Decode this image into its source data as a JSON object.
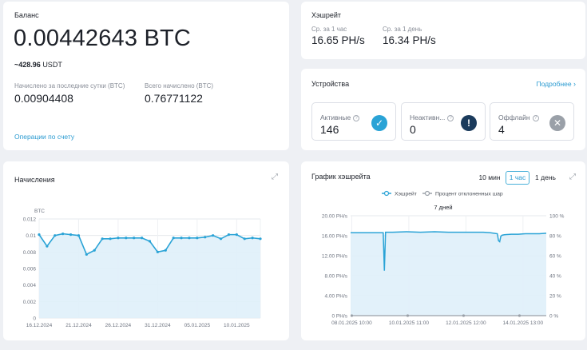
{
  "balance": {
    "title": "Баланс",
    "amount": "0.00442643 BTC",
    "usdt": "~428.96",
    "usdt_unit": "USDT",
    "daily_label": "Начислено за последние сутки (BTC)",
    "daily_value": "0.00904408",
    "total_label": "Всего начислено (BTC)",
    "total_value": "0.76771122",
    "operations_link": "Операции по счету"
  },
  "hashrate": {
    "title": "Хэшрейт",
    "hour_label": "Ср. за 1 час",
    "hour_value": "16.65 PH/s",
    "day_label": "Ср. за 1 день",
    "day_value": "16.34 PH/s"
  },
  "devices": {
    "title": "Устройства",
    "more_link": "Подробнее",
    "active_label": "Активные",
    "active_value": "146",
    "inactive_label": "Неактивн...",
    "inactive_value": "0",
    "offline_label": "Оффлайн",
    "offline_value": "4",
    "colors": {
      "active": "#2aa3d6",
      "inactive": "#1b3b5c",
      "offline": "#9aa0a8"
    }
  },
  "accruals_chart": {
    "title": "Начисления",
    "chart_data": {
      "type": "area",
      "ylabel": "BTC",
      "ylim": [
        0,
        0.012
      ],
      "yticks": [
        "0.012",
        "0.01",
        "0.008",
        "0.006",
        "0.004",
        "0.002",
        "0"
      ],
      "xtick_labels": [
        "16.12.2024",
        "21.12.2024",
        "26.12.2024",
        "31.12.2024",
        "05.01.2025",
        "10.01.2025"
      ],
      "x": [
        "16.12.2024",
        "17.12.2024",
        "18.12.2024",
        "19.12.2024",
        "20.12.2024",
        "21.12.2024",
        "22.12.2024",
        "23.12.2024",
        "24.12.2024",
        "25.12.2024",
        "26.12.2024",
        "27.12.2024",
        "28.12.2024",
        "29.12.2024",
        "30.12.2024",
        "31.12.2024",
        "01.01.2025",
        "02.01.2025",
        "03.01.2025",
        "04.01.2025",
        "05.01.2025",
        "06.01.2025",
        "07.01.2025",
        "08.01.2025",
        "09.01.2025",
        "10.01.2025",
        "11.01.2025",
        "12.01.2025",
        "13.01.2025"
      ],
      "values": [
        0.0101,
        0.0087,
        0.01,
        0.0102,
        0.0101,
        0.01,
        0.0077,
        0.0082,
        0.0096,
        0.0096,
        0.0097,
        0.0097,
        0.0097,
        0.0097,
        0.0093,
        0.008,
        0.0082,
        0.0097,
        0.0097,
        0.0097,
        0.0097,
        0.0098,
        0.01,
        0.0096,
        0.0101,
        0.0101,
        0.0096,
        0.0097,
        0.0096
      ],
      "grid": true,
      "colors": {
        "line": "#2aa3d6",
        "fill": "#dff0f9"
      }
    }
  },
  "hashrate_chart": {
    "title": "График хэшрейта",
    "range_buttons": [
      "10 мин",
      "1 час",
      "1 день"
    ],
    "active_range": "1 час",
    "legend": [
      "Хэшрейт",
      "Процент отклоненных шар"
    ],
    "period": "7 дней",
    "chart_data": {
      "type": "area",
      "ylim_left": [
        0,
        20
      ],
      "yticks_left": [
        "20.00 PH/s",
        "16.00 PH/s",
        "12.00 PH/s",
        "8.00 PH/s",
        "4.00 PH/s",
        "0 PH/s"
      ],
      "ylim_right": [
        0,
        100
      ],
      "yticks_right": [
        "100 %",
        "80 %",
        "60 %",
        "40 %",
        "20 %",
        "0 %"
      ],
      "xtick_labels": [
        "08.01.2025 10:00",
        "10.01.2025 11:00",
        "12.01.2025 12:00",
        "14.01.2025 13:00"
      ],
      "series": [
        {
          "name": "Хэшрейт",
          "x_hours": [
            0,
            6,
            12,
            18,
            24,
            28,
            29,
            30,
            36,
            48,
            60,
            72,
            84,
            96,
            102,
            108,
            114,
            120,
            126,
            127,
            128,
            129,
            130,
            132,
            138,
            144,
            150,
            156,
            162,
            168
          ],
          "values": [
            16.6,
            16.6,
            16.6,
            16.6,
            16.6,
            16.6,
            9.0,
            16.7,
            16.7,
            16.8,
            16.7,
            16.8,
            16.7,
            16.7,
            16.7,
            16.7,
            16.7,
            16.6,
            16.4,
            15.0,
            14.8,
            15.9,
            16.1,
            16.2,
            16.3,
            16.3,
            16.4,
            16.4,
            16.4,
            16.5
          ]
        },
        {
          "name": "Процент отклоненных шар",
          "x_hours": [
            0,
            48,
            96,
            144
          ],
          "values": [
            0,
            0,
            0,
            0
          ]
        }
      ],
      "grid": true,
      "colors": {
        "line": "#2aa3d6",
        "fill": "#dff0f9",
        "reject": "#9aa0a8"
      }
    }
  },
  "colors": {
    "accent": "#2b9bd1",
    "background": "#eef0f4"
  }
}
